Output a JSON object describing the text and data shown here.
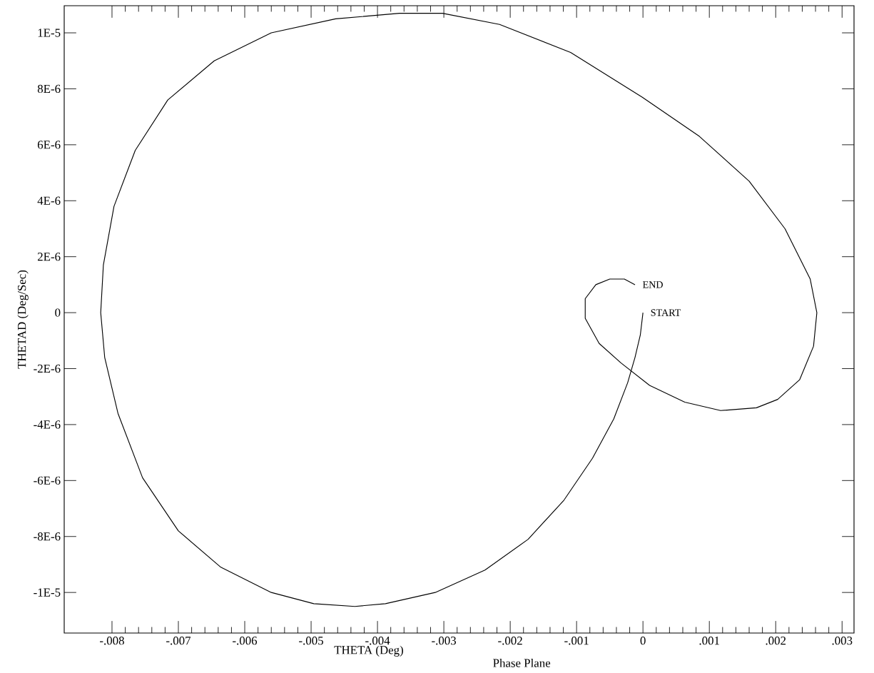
{
  "chart_data": {
    "type": "line",
    "xlabel": "THETA (Deg)",
    "ylabel": "THETAD (Deg/Sec)",
    "annotations": [
      "Phase Plane",
      {
        "text": "START",
        "x": 0,
        "y": 0
      },
      {
        "text": "END",
        "x": -0.00012,
        "y": 1e-06
      }
    ],
    "xlim": [
      -0.00872,
      0.00318
    ],
    "ylim": [
      -1.145e-05,
      1.097e-05
    ],
    "xticks": [
      {
        "value": -0.008,
        "label": "-.008"
      },
      {
        "value": -0.007,
        "label": "-.007"
      },
      {
        "value": -0.006,
        "label": "-.006"
      },
      {
        "value": -0.005,
        "label": "-.005"
      },
      {
        "value": -0.004,
        "label": "-.004"
      },
      {
        "value": -0.003,
        "label": "-.003"
      },
      {
        "value": -0.002,
        "label": "-.002"
      },
      {
        "value": -0.001,
        "label": "-.001"
      },
      0,
      {
        "value": 0.001,
        "label": ".001"
      },
      {
        "value": 0.002,
        "label": ".002"
      },
      {
        "value": 0.003,
        "label": ".003"
      }
    ],
    "yticks": [
      {
        "value": 1e-05,
        "label": "1E-5"
      },
      {
        "value": 8e-06,
        "label": "8E-6"
      },
      {
        "value": 6e-06,
        "label": "6E-6"
      },
      {
        "value": 4e-06,
        "label": "4E-6"
      },
      {
        "value": 2e-06,
        "label": "2E-6"
      },
      0,
      {
        "value": -2e-06,
        "label": "-2E-6"
      },
      {
        "value": -4e-06,
        "label": "-4E-6"
      },
      {
        "value": -6e-06,
        "label": "-6E-6"
      },
      {
        "value": -8e-06,
        "label": "-8E-6"
      },
      {
        "value": -1e-05,
        "label": "-1E-5"
      }
    ],
    "grid": false,
    "marker": "none",
    "line_style": "solid",
    "series": [
      {
        "color": "#000000",
        "x": [
          0,
          -4e-05,
          -0.00012,
          -0.00023,
          -0.00044,
          -0.00076,
          -0.00119,
          -0.00173,
          -0.00238,
          -0.00313,
          -0.00388,
          -0.00434,
          -0.00496,
          -0.0056,
          -0.00636,
          -0.007,
          -0.00754,
          -0.00791,
          -0.00811,
          -0.00817,
          -0.00813,
          -0.00797,
          -0.00765,
          -0.00716,
          -0.00646,
          -0.0056,
          -0.00463,
          -0.00367,
          -0.00302,
          -0.00216,
          -0.00109,
          -1e-05,
          0.00085,
          0.0016,
          0.00214,
          0.00252,
          0.00262,
          0.00257,
          0.00236,
          0.00203,
          0.00171,
          0.00117,
          0.00063,
          0.0001,
          -0.00033,
          -0.00066,
          -0.00087,
          -0.00087,
          -0.00071,
          -0.0005,
          -0.00028,
          -0.00012
        ],
        "values": [
          0,
          -8e-07,
          -1.6e-06,
          -2.5e-06,
          -3.8e-06,
          -5.2e-06,
          -6.7e-06,
          -8.1e-06,
          -9.2e-06,
          -1e-05,
          -1.04e-05,
          -1.05e-05,
          -1.04e-05,
          -1e-05,
          -9.1e-06,
          -7.8e-06,
          -5.9e-06,
          -3.6e-06,
          -1.6e-06,
          0,
          1.7e-06,
          3.8e-06,
          5.8e-06,
          7.6e-06,
          9e-06,
          1e-05,
          1.05e-05,
          1.07e-05,
          1.07e-05,
          1.03e-05,
          9.3e-06,
          7.7e-06,
          6.3e-06,
          4.7e-06,
          3e-06,
          1.2e-06,
          0,
          -1.2e-06,
          -2.4e-06,
          -3.1e-06,
          -3.4e-06,
          -3.5e-06,
          -3.2e-06,
          -2.6e-06,
          -1.8e-06,
          -1.1e-06,
          -2e-07,
          5e-07,
          1e-06,
          1.2e-06,
          1.2e-06,
          1e-06
        ]
      }
    ]
  }
}
